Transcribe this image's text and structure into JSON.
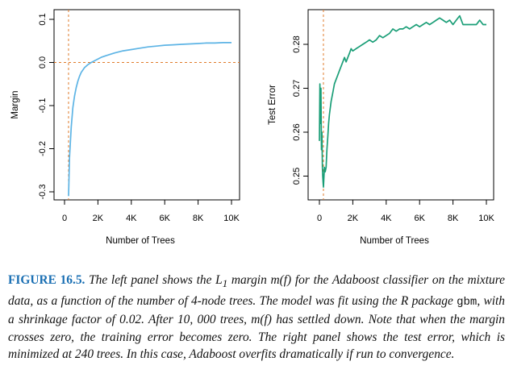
{
  "chart_data": [
    {
      "type": "line",
      "title": "",
      "xlabel": "Number of Trees",
      "ylabel": "Margin",
      "xlim": [
        0,
        10000
      ],
      "ylim": [
        -0.3,
        0.1
      ],
      "xticks": [
        0,
        2000,
        4000,
        6000,
        8000,
        10000
      ],
      "xtick_labels": [
        "0",
        "2K",
        "4K",
        "6K",
        "8K",
        "10K"
      ],
      "yticks": [
        -0.3,
        -0.2,
        -0.1,
        0.0,
        0.1
      ],
      "ytick_labels": [
        "-0.3",
        "-0.2",
        "-0.1",
        "0.0",
        "0.1"
      ],
      "reference_lines": {
        "vertical_x": 240,
        "horizontal_y": 0.0,
        "style": "dashed",
        "color": "#e07b2a"
      },
      "series": [
        {
          "color": "#5db4e5",
          "x": [
            240,
            300,
            400,
            500,
            600,
            700,
            800,
            900,
            1000,
            1200,
            1400,
            1600,
            1800,
            2000,
            2200,
            2500,
            3000,
            3500,
            4000,
            4500,
            5000,
            5500,
            6000,
            6500,
            7000,
            7500,
            8000,
            8500,
            9000,
            9500,
            10000
          ],
          "y": [
            -0.31,
            -0.22,
            -0.15,
            -0.105,
            -0.078,
            -0.058,
            -0.043,
            -0.032,
            -0.023,
            -0.012,
            -0.005,
            0.0,
            0.004,
            0.008,
            0.012,
            0.016,
            0.022,
            0.027,
            0.03,
            0.033,
            0.036,
            0.038,
            0.04,
            0.041,
            0.042,
            0.043,
            0.044,
            0.045,
            0.045,
            0.046,
            0.046
          ]
        }
      ]
    },
    {
      "type": "line",
      "title": "",
      "xlabel": "Number of Trees",
      "ylabel": "Test Error",
      "xlim": [
        0,
        10000
      ],
      "ylim": [
        0.245,
        0.29
      ],
      "xticks": [
        0,
        2000,
        4000,
        6000,
        8000,
        10000
      ],
      "xtick_labels": [
        "0",
        "2K",
        "4K",
        "6K",
        "8K",
        "10K"
      ],
      "yticks": [
        0.25,
        0.26,
        0.27,
        0.28
      ],
      "ytick_labels": [
        "0.25",
        "0.26",
        "0.27",
        "0.28"
      ],
      "reference_lines": {
        "vertical_x": 240,
        "style": "dashed",
        "color": "#e07b2a"
      },
      "series": [
        {
          "color": "#1a9e77",
          "x": [
            0,
            30,
            60,
            90,
            120,
            150,
            180,
            200,
            220,
            240,
            260,
            300,
            350,
            400,
            450,
            500,
            550,
            600,
            700,
            800,
            900,
            1000,
            1100,
            1200,
            1300,
            1400,
            1500,
            1600,
            1700,
            1800,
            1900,
            2000,
            2200,
            2400,
            2600,
            2800,
            3000,
            3200,
            3400,
            3600,
            3800,
            4000,
            4200,
            4400,
            4600,
            4800,
            5000,
            5200,
            5400,
            5600,
            5800,
            6000,
            6200,
            6400,
            6600,
            6800,
            7000,
            7200,
            7400,
            7600,
            7800,
            8000,
            8200,
            8400,
            8600,
            8800,
            9000,
            9200,
            9400,
            9600,
            9800,
            10000
          ],
          "y": [
            0.258,
            0.271,
            0.262,
            0.27,
            0.256,
            0.26,
            0.252,
            0.25,
            0.2485,
            0.2475,
            0.249,
            0.252,
            0.251,
            0.252,
            0.256,
            0.259,
            0.262,
            0.264,
            0.267,
            0.269,
            0.271,
            0.272,
            0.273,
            0.274,
            0.275,
            0.276,
            0.277,
            0.276,
            0.277,
            0.278,
            0.279,
            0.2785,
            0.279,
            0.2795,
            0.28,
            0.2805,
            0.281,
            0.2805,
            0.281,
            0.282,
            0.2815,
            0.282,
            0.2825,
            0.2835,
            0.283,
            0.2835,
            0.2835,
            0.284,
            0.2835,
            0.284,
            0.2845,
            0.284,
            0.2845,
            0.285,
            0.2845,
            0.285,
            0.2855,
            0.286,
            0.2855,
            0.285,
            0.2855,
            0.2845,
            0.2855,
            0.2865,
            0.2845,
            0.2845,
            0.2845,
            0.2845,
            0.2845,
            0.2855,
            0.2845,
            0.2845
          ]
        }
      ]
    }
  ],
  "caption": {
    "figure_label": "FIGURE 16.5.",
    "text_a": "The left panel shows the L",
    "text_a_sub": "1",
    "text_b": " margin m(f) for the Adaboost classifier on the mixture data, as a function of the number of 4-node trees. The model was fit using the R package ",
    "package": "gbm",
    "text_c": ", with a shrinkage factor of 0.02. After 10, 000 trees, m(f) has settled down. Note that when the margin crosses zero, the training error becomes zero. The right panel shows the test error, which is minimized at 240 trees. In this case, Adaboost overfits dramatically if run to convergence."
  }
}
